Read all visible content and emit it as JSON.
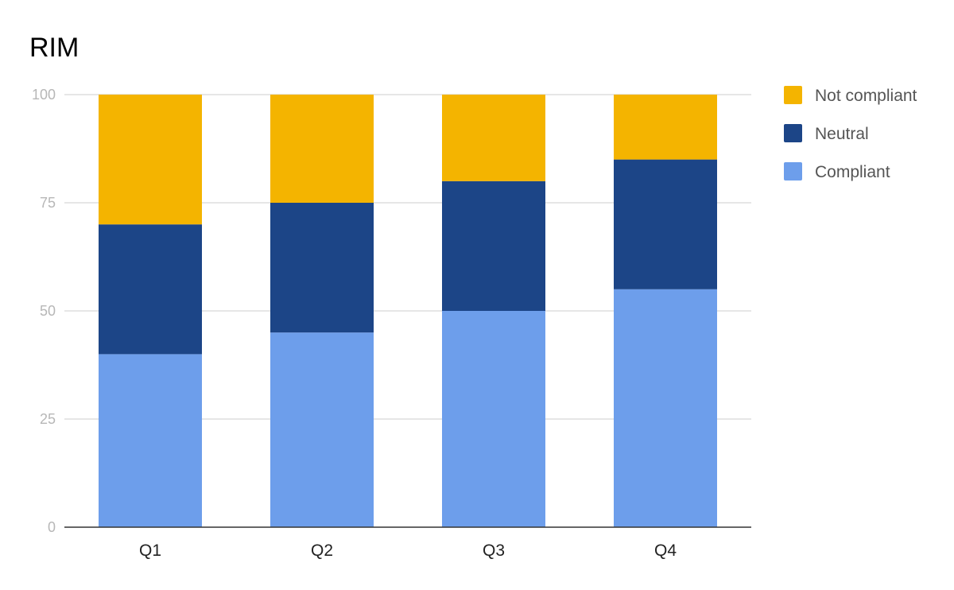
{
  "chart_data": {
    "type": "bar",
    "stacked": true,
    "title": "RIM",
    "xlabel": "",
    "ylabel": "",
    "categories": [
      "Q1",
      "Q2",
      "Q3",
      "Q4"
    ],
    "series": [
      {
        "name": "Compliant",
        "color": "#6d9eeb",
        "values": [
          40,
          45,
          50,
          55
        ]
      },
      {
        "name": "Neutral",
        "color": "#1c4587",
        "values": [
          30,
          30,
          30,
          30
        ]
      },
      {
        "name": "Not compliant",
        "color": "#f4b400",
        "values": [
          30,
          25,
          20,
          15
        ]
      }
    ],
    "ylim": [
      0,
      100
    ],
    "yticks": [
      "0",
      "25",
      "50",
      "75",
      "100"
    ],
    "grid": true,
    "legend": {
      "position": "right",
      "order": [
        "Not compliant",
        "Neutral",
        "Compliant"
      ]
    }
  }
}
